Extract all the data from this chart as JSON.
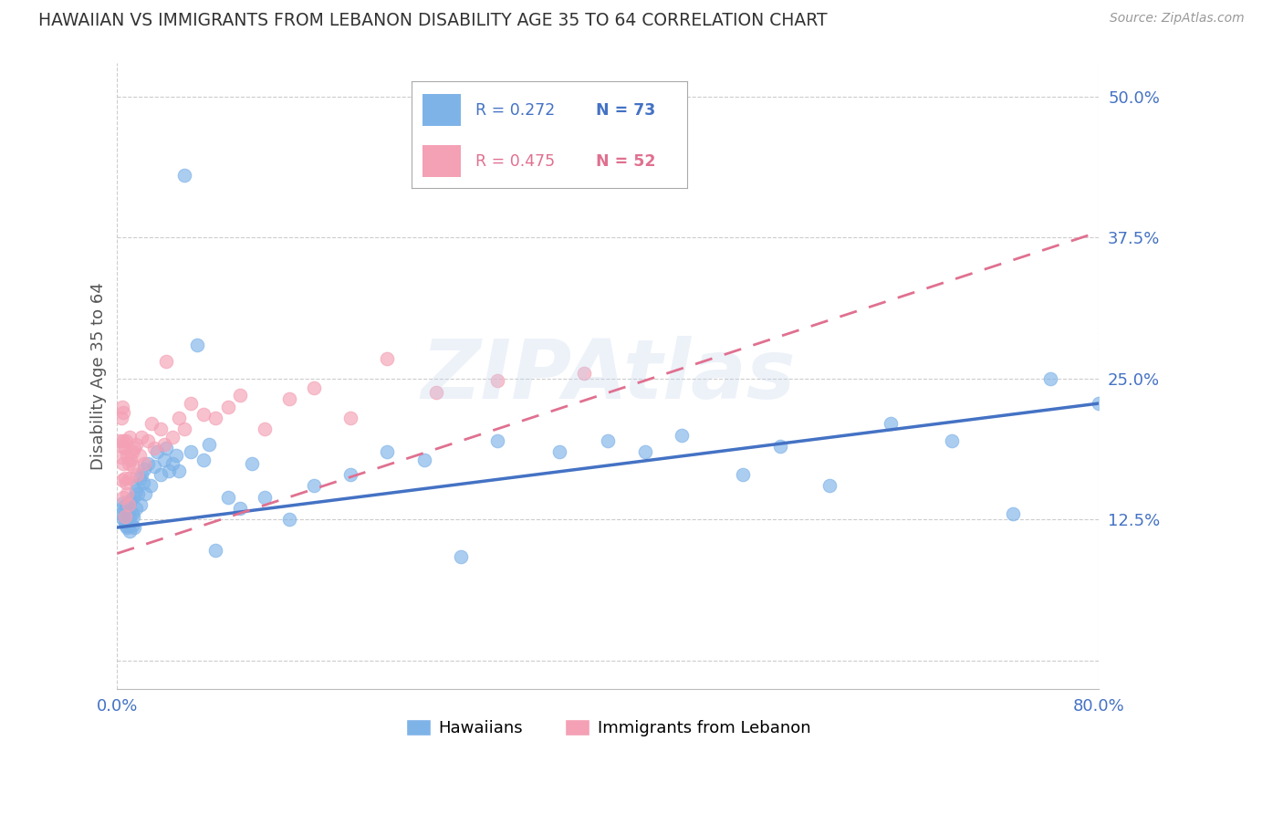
{
  "title": "HAWAIIAN VS IMMIGRANTS FROM LEBANON DISABILITY AGE 35 TO 64 CORRELATION CHART",
  "source": "Source: ZipAtlas.com",
  "ylabel": "Disability Age 35 to 64",
  "xlim": [
    0.0,
    0.8
  ],
  "ylim": [
    -0.025,
    0.53
  ],
  "hawaiians_color": "#7eb3e8",
  "lebanon_color": "#f4a0b5",
  "trendline_hawaii_color": "#4472c4",
  "trendline_lebanon_color": "#e07090",
  "watermark": "ZIPAtlas",
  "background_color": "#ffffff",
  "grid_color": "#cccccc",
  "axis_label_color": "#4472c4",
  "title_color": "#333333",
  "title_fontsize": 13.5,
  "R_haw": 0.272,
  "N_haw": 73,
  "R_leb": 0.475,
  "N_leb": 52,
  "haw_trend_x0": 0.0,
  "haw_trend_y0": 0.118,
  "haw_trend_x1": 0.8,
  "haw_trend_y1": 0.228,
  "leb_trend_x0": 0.0,
  "leb_trend_y0": 0.095,
  "leb_trend_x1": 0.8,
  "leb_trend_y1": 0.38,
  "hawaiians_x": [
    0.003,
    0.004,
    0.005,
    0.005,
    0.006,
    0.006,
    0.006,
    0.007,
    0.007,
    0.008,
    0.008,
    0.008,
    0.009,
    0.009,
    0.01,
    0.01,
    0.01,
    0.011,
    0.012,
    0.012,
    0.013,
    0.013,
    0.014,
    0.015,
    0.015,
    0.016,
    0.017,
    0.018,
    0.019,
    0.02,
    0.021,
    0.022,
    0.023,
    0.025,
    0.027,
    0.03,
    0.032,
    0.035,
    0.038,
    0.04,
    0.042,
    0.045,
    0.048,
    0.05,
    0.055,
    0.06,
    0.065,
    0.07,
    0.075,
    0.08,
    0.09,
    0.1,
    0.11,
    0.12,
    0.14,
    0.16,
    0.19,
    0.22,
    0.25,
    0.28,
    0.31,
    0.36,
    0.4,
    0.43,
    0.46,
    0.51,
    0.54,
    0.58,
    0.63,
    0.68,
    0.73,
    0.76,
    0.8
  ],
  "hawaiians_y": [
    0.13,
    0.135,
    0.125,
    0.14,
    0.132,
    0.128,
    0.122,
    0.138,
    0.12,
    0.125,
    0.135,
    0.118,
    0.13,
    0.12,
    0.14,
    0.128,
    0.115,
    0.142,
    0.13,
    0.12,
    0.145,
    0.128,
    0.118,
    0.15,
    0.135,
    0.155,
    0.148,
    0.162,
    0.138,
    0.165,
    0.158,
    0.17,
    0.148,
    0.175,
    0.155,
    0.172,
    0.185,
    0.165,
    0.178,
    0.188,
    0.168,
    0.175,
    0.182,
    0.168,
    0.43,
    0.185,
    0.28,
    0.178,
    0.192,
    0.098,
    0.145,
    0.135,
    0.175,
    0.145,
    0.125,
    0.155,
    0.165,
    0.185,
    0.178,
    0.092,
    0.195,
    0.185,
    0.195,
    0.185,
    0.2,
    0.165,
    0.19,
    0.155,
    0.21,
    0.195,
    0.13,
    0.25,
    0.228
  ],
  "lebanon_x": [
    0.002,
    0.003,
    0.003,
    0.004,
    0.004,
    0.004,
    0.005,
    0.005,
    0.005,
    0.005,
    0.006,
    0.006,
    0.006,
    0.007,
    0.007,
    0.008,
    0.008,
    0.009,
    0.009,
    0.01,
    0.01,
    0.011,
    0.012,
    0.013,
    0.014,
    0.015,
    0.016,
    0.018,
    0.02,
    0.022,
    0.025,
    0.028,
    0.03,
    0.035,
    0.038,
    0.04,
    0.045,
    0.05,
    0.055,
    0.06,
    0.07,
    0.08,
    0.09,
    0.1,
    0.12,
    0.14,
    0.16,
    0.19,
    0.22,
    0.26,
    0.31,
    0.38
  ],
  "lebanon_y": [
    0.195,
    0.215,
    0.18,
    0.225,
    0.19,
    0.16,
    0.22,
    0.195,
    0.175,
    0.145,
    0.188,
    0.162,
    0.128,
    0.195,
    0.158,
    0.182,
    0.148,
    0.175,
    0.138,
    0.198,
    0.162,
    0.178,
    0.185,
    0.172,
    0.188,
    0.192,
    0.165,
    0.182,
    0.198,
    0.175,
    0.195,
    0.21,
    0.188,
    0.205,
    0.192,
    0.265,
    0.198,
    0.215,
    0.205,
    0.228,
    0.218,
    0.215,
    0.225,
    0.235,
    0.205,
    0.232,
    0.242,
    0.215,
    0.268,
    0.238,
    0.248,
    0.255
  ]
}
